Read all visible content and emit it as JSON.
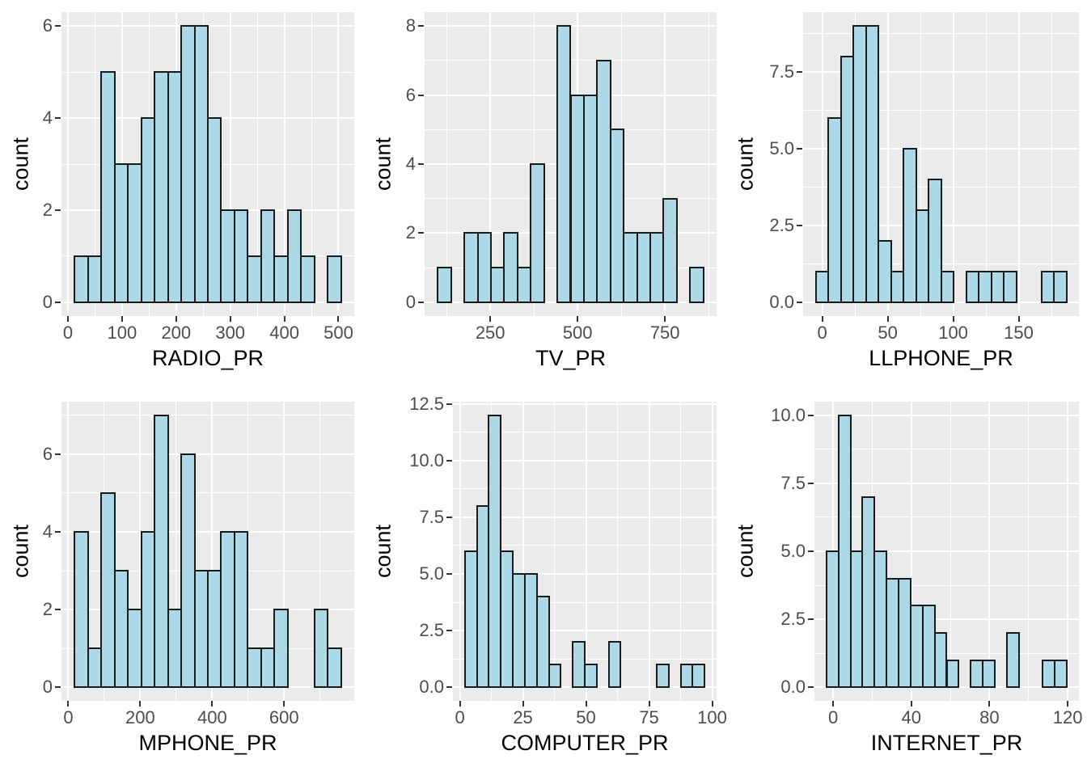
{
  "figure": {
    "kind": "histogram-grid",
    "rows": 2,
    "cols": 3,
    "background": "#FFFFFF"
  },
  "colors": {
    "panel_background": "#EBEBEB",
    "grid_line": "#FFFFFF",
    "bar_fill": "#ADD8E6",
    "bar_stroke": "#1A1A1A",
    "tick_mark": "#333333",
    "tick_text": "#4D4D4D",
    "title_text": "#000000"
  },
  "chart_data": [
    {
      "type": "bar",
      "subtype": "histogram",
      "title": "",
      "xlabel": "RADIO_PR",
      "ylabel": "count",
      "bin_start": 12.6,
      "bin_width": 24.6,
      "counts": [
        1,
        1,
        5,
        3,
        3,
        4,
        5,
        5,
        6,
        6,
        4,
        2,
        2,
        1,
        2,
        1,
        2,
        1,
        0,
        1
      ],
      "x_tick_values": [
        0,
        100,
        200,
        300,
        400,
        500
      ],
      "x_tick_labels": [
        "0",
        "100",
        "200",
        "300",
        "400",
        "500"
      ],
      "y_tick_values": [
        0,
        2,
        4,
        6
      ],
      "y_tick_labels": [
        "0",
        "2",
        "4",
        "6"
      ],
      "y_data_max": 6,
      "grid": true,
      "legend": "none"
    },
    {
      "type": "bar",
      "subtype": "histogram",
      "title": "",
      "xlabel": "TV_PR",
      "ylabel": "count",
      "bin_start": 100,
      "bin_width": 38,
      "counts": [
        1,
        0,
        2,
        2,
        1,
        2,
        1,
        4,
        0,
        8,
        6,
        6,
        7,
        5,
        2,
        2,
        2,
        3,
        0,
        1
      ],
      "x_tick_values": [
        250,
        500,
        750
      ],
      "x_tick_labels": [
        "250",
        "500",
        "750"
      ],
      "y_tick_values": [
        0,
        2,
        4,
        6,
        8
      ],
      "y_tick_labels": [
        "0",
        "2",
        "4",
        "6",
        "8"
      ],
      "y_data_max": 8,
      "grid": true,
      "legend": "none"
    },
    {
      "type": "bar",
      "subtype": "histogram",
      "title": "",
      "xlabel": "LLPHONE_PR",
      "ylabel": "count",
      "bin_start": -5,
      "bin_width": 9.57,
      "counts": [
        1,
        6,
        8,
        9,
        9,
        2,
        1,
        5,
        3,
        4,
        1,
        0,
        1,
        1,
        1,
        1,
        0,
        0,
        1,
        1
      ],
      "x_tick_values": [
        0,
        50,
        100,
        150
      ],
      "x_tick_labels": [
        "0",
        "50",
        "100",
        "150"
      ],
      "y_tick_values": [
        0,
        2.5,
        5,
        7.5
      ],
      "y_tick_labels": [
        "0.0",
        "2.5",
        "5.0",
        "7.5"
      ],
      "y_data_max": 9,
      "grid": true,
      "legend": "none"
    },
    {
      "type": "bar",
      "subtype": "histogram",
      "title": "",
      "xlabel": "MPHONE_PR",
      "ylabel": "count",
      "bin_start": 18,
      "bin_width": 37,
      "counts": [
        4,
        1,
        5,
        3,
        2,
        4,
        7,
        2,
        6,
        3,
        3,
        4,
        4,
        1,
        1,
        2,
        0,
        0,
        2,
        1
      ],
      "x_tick_values": [
        0,
        200,
        400,
        600
      ],
      "x_tick_labels": [
        "0",
        "200",
        "400",
        "600"
      ],
      "y_tick_values": [
        0,
        2,
        4,
        6
      ],
      "y_tick_labels": [
        "0",
        "2",
        "4",
        "6"
      ],
      "y_data_max": 7,
      "grid": true,
      "legend": "none"
    },
    {
      "type": "bar",
      "subtype": "histogram",
      "title": "",
      "xlabel": "COMPUTER_PR",
      "ylabel": "count",
      "bin_start": 2,
      "bin_width": 4.75,
      "counts": [
        6,
        8,
        12,
        6,
        5,
        5,
        4,
        1,
        0,
        2,
        1,
        0,
        2,
        0,
        0,
        0,
        1,
        0,
        1,
        1
      ],
      "x_tick_values": [
        0,
        25,
        50,
        75,
        100
      ],
      "x_tick_labels": [
        "0",
        "25",
        "50",
        "75",
        "100"
      ],
      "y_tick_values": [
        0,
        2.5,
        5,
        7.5,
        10,
        12.5
      ],
      "y_tick_labels": [
        "0.0",
        "2.5",
        "5.0",
        "7.5",
        "10.0",
        "12.5"
      ],
      "y_data_max": 12,
      "grid": true,
      "legend": "none"
    },
    {
      "type": "bar",
      "subtype": "histogram",
      "title": "",
      "xlabel": "INTERNET_PR",
      "ylabel": "count",
      "bin_start": -3.4,
      "bin_width": 6.15,
      "counts": [
        5,
        10,
        5,
        7,
        5,
        4,
        4,
        3,
        3,
        2,
        1,
        0,
        1,
        1,
        0,
        2,
        0,
        0,
        1,
        1
      ],
      "x_tick_values": [
        0,
        40,
        80,
        120
      ],
      "x_tick_labels": [
        "0",
        "40",
        "80",
        "120"
      ],
      "y_tick_values": [
        0,
        2.5,
        5,
        7.5,
        10
      ],
      "y_tick_labels": [
        "0.0",
        "2.5",
        "5.0",
        "7.5",
        "10.0"
      ],
      "y_data_max": 10,
      "grid": true,
      "legend": "none"
    }
  ]
}
